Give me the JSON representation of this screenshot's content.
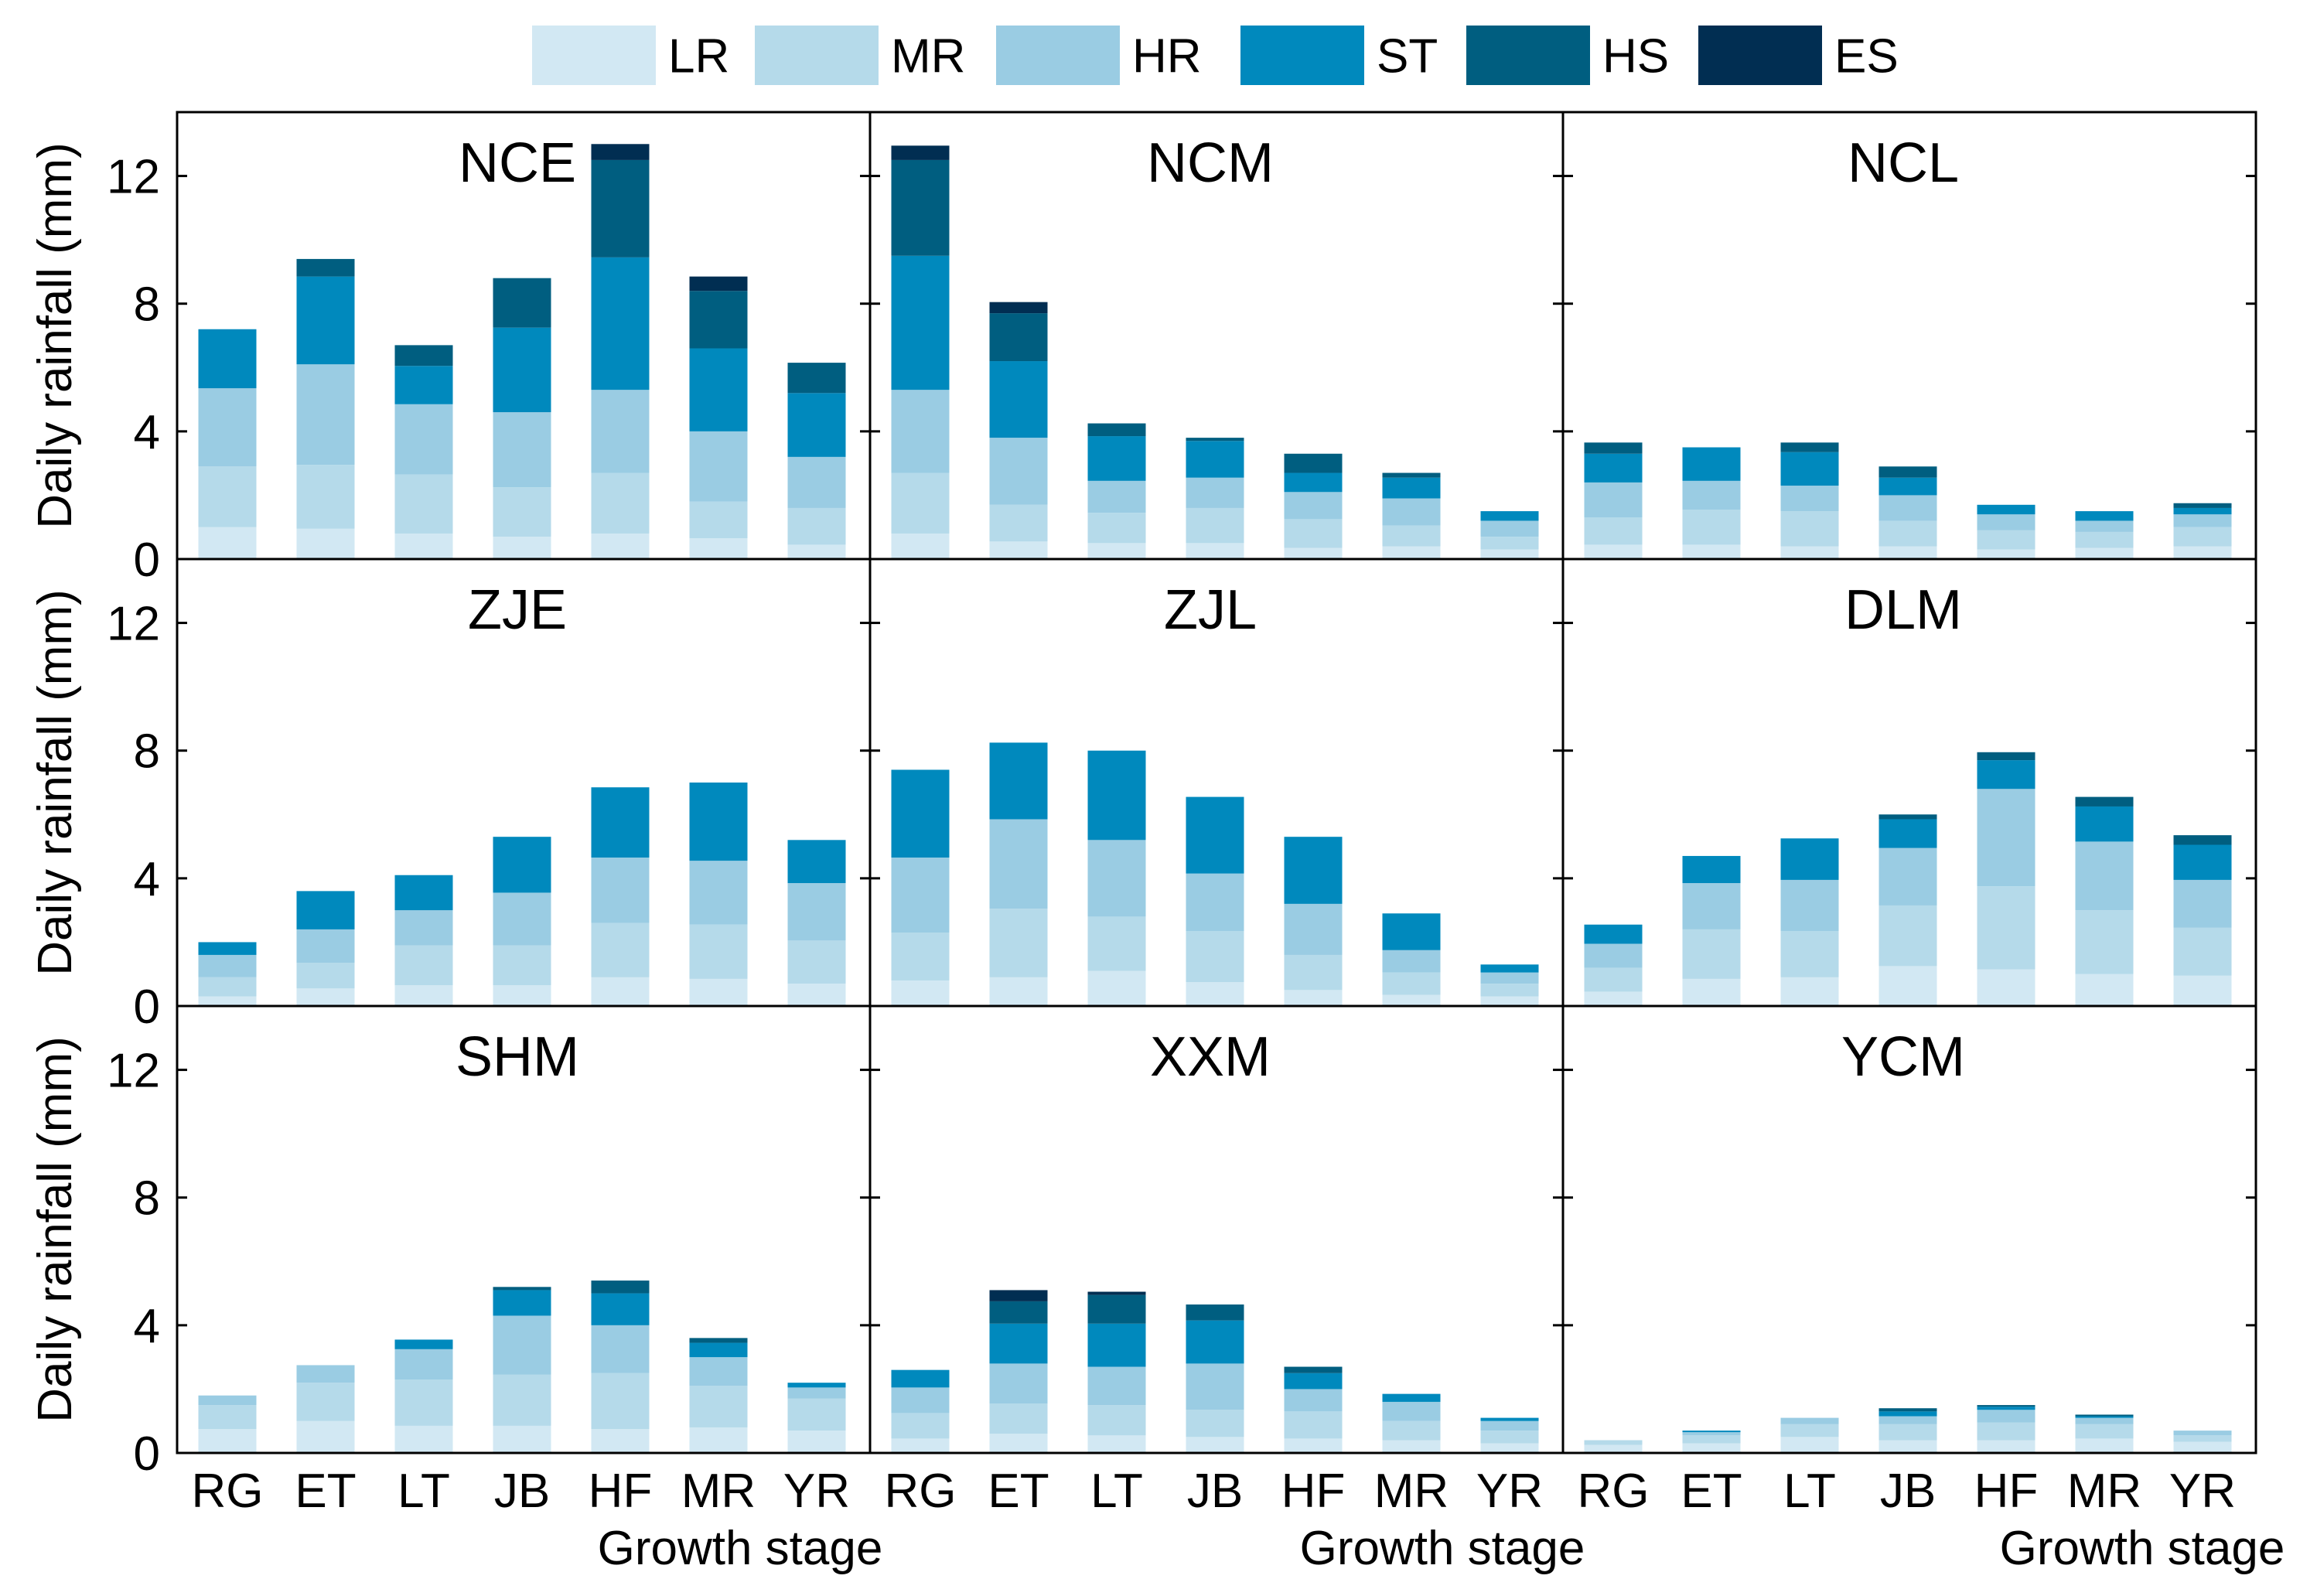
{
  "chart_data": {
    "type": "bar",
    "stacked": true,
    "stages": [
      "RG",
      "ET",
      "LT",
      "JB",
      "HF",
      "MR",
      "YR"
    ],
    "series_names": [
      "LR",
      "MR",
      "HR",
      "ST",
      "HS",
      "ES"
    ],
    "colors": {
      "LR": "#d2e8f3",
      "MR": "#b5daea",
      "HR": "#9acce3",
      "ST": "#0089bd",
      "HS": "#005e80",
      "ES": "#012e52"
    },
    "ylabel": "Daily rainfall (mm)",
    "xlabel": "Growth stage",
    "ylim": [
      0,
      14
    ],
    "yticks": [
      0,
      4,
      8,
      12
    ],
    "legend_position": "top",
    "panels": [
      {
        "name": "NCE",
        "values": {
          "LR": [
            1.0,
            0.95,
            0.8,
            0.7,
            0.8,
            0.65,
            0.45
          ],
          "MR": [
            1.9,
            2.0,
            1.85,
            1.55,
            1.9,
            1.15,
            1.15
          ],
          "HR": [
            2.45,
            3.15,
            2.2,
            2.35,
            2.6,
            2.2,
            1.6
          ],
          "ST": [
            1.85,
            2.75,
            1.2,
            2.65,
            4.15,
            2.6,
            2.0
          ],
          "HS": [
            0.0,
            0.55,
            0.65,
            1.55,
            3.05,
            1.8,
            0.95
          ],
          "ES": [
            0.0,
            0.0,
            0.0,
            0.0,
            0.5,
            0.45,
            0.0
          ]
        }
      },
      {
        "name": "NCM",
        "values": {
          "LR": [
            0.8,
            0.55,
            0.5,
            0.5,
            0.35,
            0.4,
            0.3
          ],
          "MR": [
            1.9,
            1.15,
            0.95,
            1.1,
            0.9,
            0.65,
            0.4
          ],
          "HR": [
            2.6,
            2.1,
            1.0,
            0.95,
            0.85,
            0.85,
            0.5
          ],
          "ST": [
            4.2,
            2.4,
            1.4,
            1.15,
            0.6,
            0.65,
            0.3
          ],
          "HS": [
            3.0,
            1.5,
            0.4,
            0.1,
            0.6,
            0.15,
            0.0
          ],
          "ES": [
            0.45,
            0.35,
            0.0,
            0.0,
            0.0,
            0.0,
            0.0
          ]
        }
      },
      {
        "name": "NCL",
        "values": {
          "LR": [
            0.45,
            0.45,
            0.4,
            0.4,
            0.3,
            0.35,
            0.4
          ],
          "MR": [
            0.85,
            1.1,
            1.1,
            0.8,
            0.6,
            0.5,
            0.6
          ],
          "HR": [
            1.1,
            0.9,
            0.8,
            0.8,
            0.5,
            0.35,
            0.4
          ],
          "ST": [
            0.9,
            1.05,
            1.05,
            0.55,
            0.3,
            0.3,
            0.2
          ],
          "HS": [
            0.35,
            0.0,
            0.3,
            0.35,
            0.0,
            0.0,
            0.15
          ],
          "ES": [
            0.0,
            0.0,
            0.0,
            0.0,
            0.0,
            0.0,
            0.0
          ]
        }
      },
      {
        "name": "ZJE",
        "values": {
          "LR": [
            0.3,
            0.55,
            0.65,
            0.65,
            0.9,
            0.85,
            0.7
          ],
          "MR": [
            0.6,
            0.8,
            1.25,
            1.25,
            1.7,
            1.7,
            1.35
          ],
          "HR": [
            0.7,
            1.05,
            1.1,
            1.65,
            2.05,
            2.0,
            1.8
          ],
          "ST": [
            0.4,
            1.2,
            1.1,
            1.75,
            2.2,
            2.45,
            1.35
          ],
          "HS": [
            0.0,
            0.0,
            0.0,
            0.0,
            0.0,
            0.0,
            0.0
          ],
          "ES": [
            0.0,
            0.0,
            0.0,
            0.0,
            0.0,
            0.0,
            0.0
          ]
        }
      },
      {
        "name": "ZJL",
        "values": {
          "LR": [
            0.8,
            0.9,
            1.1,
            0.75,
            0.5,
            0.35,
            0.3
          ],
          "MR": [
            1.5,
            2.15,
            1.7,
            1.6,
            1.1,
            0.7,
            0.4
          ],
          "HR": [
            2.35,
            2.8,
            2.4,
            1.8,
            1.6,
            0.7,
            0.35
          ],
          "ST": [
            2.75,
            2.4,
            2.8,
            2.4,
            2.1,
            1.15,
            0.25
          ],
          "HS": [
            0.0,
            0.0,
            0.0,
            0.0,
            0.0,
            0.0,
            0.0
          ],
          "ES": [
            0.0,
            0.0,
            0.0,
            0.0,
            0.0,
            0.0,
            0.0
          ]
        }
      },
      {
        "name": "DLM",
        "values": {
          "LR": [
            0.45,
            0.85,
            0.9,
            1.25,
            1.15,
            1.0,
            0.95
          ],
          "MR": [
            0.75,
            1.55,
            1.45,
            1.9,
            2.6,
            2.0,
            1.5
          ],
          "HR": [
            0.75,
            1.45,
            1.6,
            1.8,
            3.05,
            2.15,
            1.5
          ],
          "ST": [
            0.6,
            0.85,
            1.3,
            0.9,
            0.9,
            1.1,
            1.1
          ],
          "HS": [
            0.0,
            0.0,
            0.0,
            0.15,
            0.25,
            0.3,
            0.3
          ],
          "ES": [
            0.0,
            0.0,
            0.0,
            0.0,
            0.0,
            0.0,
            0.0
          ]
        }
      },
      {
        "name": "SHM",
        "values": {
          "LR": [
            0.75,
            1.0,
            0.85,
            0.85,
            0.75,
            0.8,
            0.7
          ],
          "MR": [
            0.75,
            1.2,
            1.45,
            1.6,
            1.75,
            1.3,
            1.0
          ],
          "HR": [
            0.3,
            0.55,
            0.95,
            1.85,
            1.5,
            0.9,
            0.35
          ],
          "ST": [
            0.0,
            0.0,
            0.3,
            0.8,
            1.0,
            0.45,
            0.15
          ],
          "HS": [
            0.0,
            0.0,
            0.0,
            0.1,
            0.4,
            0.15,
            0.0
          ],
          "ES": [
            0.0,
            0.0,
            0.0,
            0.0,
            0.0,
            0.0,
            0.0
          ]
        }
      },
      {
        "name": "XXM",
        "values": {
          "LR": [
            0.45,
            0.6,
            0.55,
            0.5,
            0.45,
            0.4,
            0.3
          ],
          "MR": [
            0.8,
            0.95,
            0.95,
            0.85,
            0.85,
            0.6,
            0.4
          ],
          "HR": [
            0.8,
            1.25,
            1.2,
            1.45,
            0.7,
            0.6,
            0.3
          ],
          "ST": [
            0.55,
            1.25,
            1.35,
            1.35,
            0.5,
            0.25,
            0.1
          ],
          "HS": [
            0.0,
            0.7,
            0.9,
            0.5,
            0.2,
            0.0,
            0.0
          ],
          "ES": [
            0.0,
            0.35,
            0.1,
            0.0,
            0.0,
            0.0,
            0.0
          ]
        }
      },
      {
        "name": "YCM",
        "values": {
          "LR": [
            0.25,
            0.3,
            0.5,
            0.4,
            0.4,
            0.45,
            0.35
          ],
          "MR": [
            0.15,
            0.25,
            0.4,
            0.5,
            0.55,
            0.45,
            0.2
          ],
          "HR": [
            0.0,
            0.1,
            0.2,
            0.25,
            0.4,
            0.2,
            0.15
          ],
          "ST": [
            0.0,
            0.05,
            0.0,
            0.15,
            0.1,
            0.05,
            0.0
          ],
          "HS": [
            0.0,
            0.0,
            0.0,
            0.1,
            0.05,
            0.05,
            0.0
          ],
          "ES": [
            0.0,
            0.0,
            0.0,
            0.0,
            0.0,
            0.0,
            0.0
          ]
        }
      }
    ]
  }
}
